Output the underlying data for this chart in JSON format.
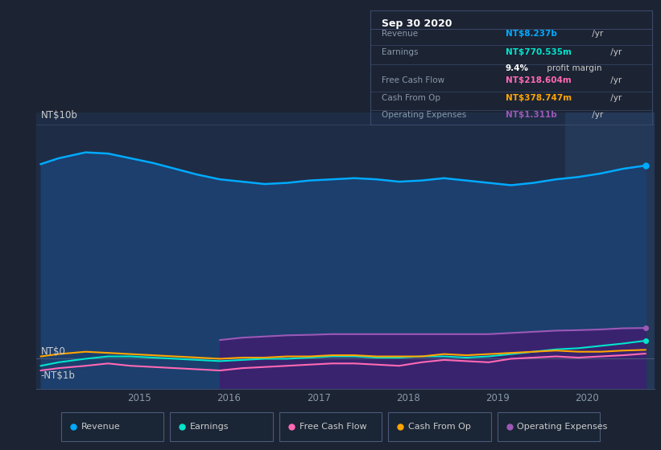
{
  "background_color": "#1c2333",
  "plot_bg_color": "#1e2d45",
  "highlight_bg_color": "#243050",
  "title_box_bg": "#0d1117",
  "ylabel": "NT$10b",
  "y0_label": "NT$0",
  "yneg1_label": "-NT$1b",
  "series_colors": {
    "Revenue": "#00aaff",
    "Earnings": "#00e5cc",
    "FreeCashFlow": "#ff69b4",
    "CashFromOp": "#ffa500",
    "OperatingExpenses": "#9b59b6"
  },
  "legend": [
    {
      "label": "Revenue",
      "color": "#00aaff"
    },
    {
      "label": "Earnings",
      "color": "#00e5cc"
    },
    {
      "label": "Free Cash Flow",
      "color": "#ff69b4"
    },
    {
      "label": "Cash From Op",
      "color": "#ffa500"
    },
    {
      "label": "Operating Expenses",
      "color": "#9b59b6"
    }
  ],
  "x_years": [
    2013.9,
    2014.1,
    2014.4,
    2014.65,
    2014.9,
    2015.15,
    2015.4,
    2015.65,
    2015.9,
    2016.15,
    2016.4,
    2016.65,
    2016.9,
    2017.15,
    2017.4,
    2017.65,
    2017.9,
    2018.15,
    2018.4,
    2018.65,
    2018.9,
    2019.15,
    2019.4,
    2019.65,
    2019.9,
    2020.15,
    2020.4,
    2020.65
  ],
  "revenue": [
    8.3,
    8.55,
    8.8,
    8.75,
    8.55,
    8.35,
    8.1,
    7.85,
    7.65,
    7.55,
    7.45,
    7.5,
    7.6,
    7.65,
    7.7,
    7.65,
    7.55,
    7.6,
    7.7,
    7.6,
    7.5,
    7.4,
    7.5,
    7.65,
    7.75,
    7.9,
    8.1,
    8.237
  ],
  "earnings": [
    -0.3,
    -0.15,
    0.0,
    0.1,
    0.1,
    0.05,
    0.0,
    -0.05,
    -0.1,
    -0.05,
    0.0,
    0.0,
    0.05,
    0.1,
    0.1,
    0.05,
    0.05,
    0.1,
    0.1,
    0.05,
    0.1,
    0.2,
    0.3,
    0.4,
    0.45,
    0.55,
    0.65,
    0.77
  ],
  "free_cash_flow": [
    -0.5,
    -0.4,
    -0.3,
    -0.2,
    -0.3,
    -0.35,
    -0.4,
    -0.45,
    -0.5,
    -0.4,
    -0.35,
    -0.3,
    -0.25,
    -0.2,
    -0.2,
    -0.25,
    -0.3,
    -0.15,
    -0.05,
    -0.1,
    -0.15,
    0.0,
    0.05,
    0.1,
    0.05,
    0.1,
    0.15,
    0.22
  ],
  "cash_from_op": [
    0.1,
    0.2,
    0.3,
    0.25,
    0.2,
    0.15,
    0.1,
    0.05,
    0.0,
    0.05,
    0.05,
    0.1,
    0.1,
    0.15,
    0.15,
    0.1,
    0.1,
    0.1,
    0.2,
    0.15,
    0.2,
    0.25,
    0.3,
    0.35,
    0.3,
    0.3,
    0.35,
    0.38
  ],
  "op_expenses": [
    0.0,
    0.0,
    0.0,
    0.0,
    0.0,
    0.0,
    0.0,
    0.0,
    0.8,
    0.9,
    0.95,
    1.0,
    1.02,
    1.05,
    1.05,
    1.05,
    1.05,
    1.05,
    1.05,
    1.05,
    1.05,
    1.1,
    1.15,
    1.2,
    1.22,
    1.25,
    1.3,
    1.311
  ],
  "highlight_start": 2019.75,
  "xlim": [
    2013.85,
    2020.75
  ],
  "ylim": [
    -1.3,
    10.5
  ],
  "zero_y": 0.0,
  "top_y": 10.0,
  "neg1_y": -1.0
}
